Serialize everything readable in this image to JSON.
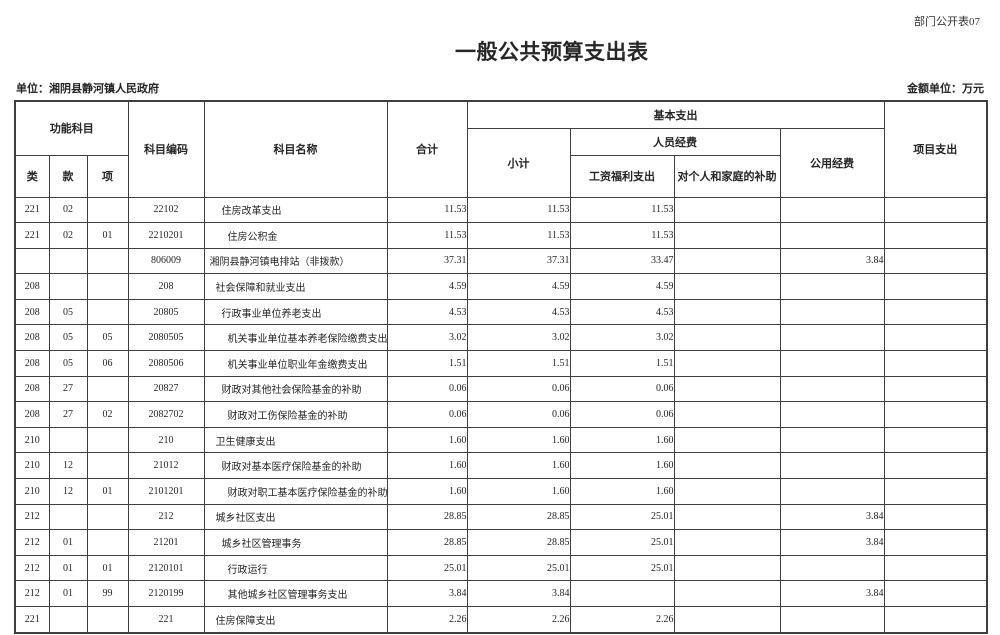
{
  "page": {
    "corner_label": "部门公开表07",
    "title": "一般公共预算支出表",
    "unit_label": "单位：湘阴县静河镇人民政府",
    "amount_unit_label": "金额单位：万元"
  },
  "colors": {
    "background": "#ffffff",
    "border": "#3f3f3f",
    "text": "#262626"
  },
  "table": {
    "header": {
      "functional_subject": "功能科目",
      "cls": "类",
      "section": "款",
      "item": "项",
      "subject_code": "科目编码",
      "subject_name": "科目名称",
      "total": "合计",
      "basic_expenditure": "基本支出",
      "subtotal": "小计",
      "personnel_funds": "人员经费",
      "wage_welfare": "工资福利支出",
      "family_subsidy": "对个人和家庭的补助",
      "public_funds": "公用经费",
      "project_expenditure": "项目支出"
    },
    "rows": [
      {
        "cls": "221",
        "sec": "02",
        "itm": "",
        "code": "22102",
        "name": "住房改革支出",
        "indent": 2,
        "total": "11.53",
        "subtotal": "11.53",
        "wage": "11.53",
        "family": "",
        "pub": "",
        "proj": ""
      },
      {
        "cls": "221",
        "sec": "02",
        "itm": "01",
        "code": "2210201",
        "name": "住房公积金",
        "indent": 3,
        "total": "11.53",
        "subtotal": "11.53",
        "wage": "11.53",
        "family": "",
        "pub": "",
        "proj": ""
      },
      {
        "cls": "",
        "sec": "",
        "itm": "",
        "code": "806009",
        "name": "湘阴县静河镇电排站（非拨款）",
        "indent": 0,
        "total": "37.31",
        "subtotal": "37.31",
        "wage": "33.47",
        "family": "",
        "pub": "3.84",
        "proj": ""
      },
      {
        "cls": "208",
        "sec": "",
        "itm": "",
        "code": "208",
        "name": "社会保障和就业支出",
        "indent": 1,
        "total": "4.59",
        "subtotal": "4.59",
        "wage": "4.59",
        "family": "",
        "pub": "",
        "proj": ""
      },
      {
        "cls": "208",
        "sec": "05",
        "itm": "",
        "code": "20805",
        "name": "行政事业单位养老支出",
        "indent": 2,
        "total": "4.53",
        "subtotal": "4.53",
        "wage": "4.53",
        "family": "",
        "pub": "",
        "proj": ""
      },
      {
        "cls": "208",
        "sec": "05",
        "itm": "05",
        "code": "2080505",
        "name": "机关事业单位基本养老保险缴费支出",
        "indent": 3,
        "total": "3.02",
        "subtotal": "3.02",
        "wage": "3.02",
        "family": "",
        "pub": "",
        "proj": ""
      },
      {
        "cls": "208",
        "sec": "05",
        "itm": "06",
        "code": "2080506",
        "name": "机关事业单位职业年金缴费支出",
        "indent": 3,
        "total": "1.51",
        "subtotal": "1.51",
        "wage": "1.51",
        "family": "",
        "pub": "",
        "proj": ""
      },
      {
        "cls": "208",
        "sec": "27",
        "itm": "",
        "code": "20827",
        "name": "财政对其他社会保险基金的补助",
        "indent": 2,
        "total": "0.06",
        "subtotal": "0.06",
        "wage": "0.06",
        "family": "",
        "pub": "",
        "proj": ""
      },
      {
        "cls": "208",
        "sec": "27",
        "itm": "02",
        "code": "2082702",
        "name": "财政对工伤保险基金的补助",
        "indent": 3,
        "total": "0.06",
        "subtotal": "0.06",
        "wage": "0.06",
        "family": "",
        "pub": "",
        "proj": ""
      },
      {
        "cls": "210",
        "sec": "",
        "itm": "",
        "code": "210",
        "name": "卫生健康支出",
        "indent": 1,
        "total": "1.60",
        "subtotal": "1.60",
        "wage": "1.60",
        "family": "",
        "pub": "",
        "proj": ""
      },
      {
        "cls": "210",
        "sec": "12",
        "itm": "",
        "code": "21012",
        "name": "财政对基本医疗保险基金的补助",
        "indent": 2,
        "total": "1.60",
        "subtotal": "1.60",
        "wage": "1.60",
        "family": "",
        "pub": "",
        "proj": ""
      },
      {
        "cls": "210",
        "sec": "12",
        "itm": "01",
        "code": "2101201",
        "name": "财政对职工基本医疗保险基金的补助",
        "indent": 3,
        "total": "1.60",
        "subtotal": "1.60",
        "wage": "1.60",
        "family": "",
        "pub": "",
        "proj": ""
      },
      {
        "cls": "212",
        "sec": "",
        "itm": "",
        "code": "212",
        "name": "城乡社区支出",
        "indent": 1,
        "total": "28.85",
        "subtotal": "28.85",
        "wage": "25.01",
        "family": "",
        "pub": "3.84",
        "proj": ""
      },
      {
        "cls": "212",
        "sec": "01",
        "itm": "",
        "code": "21201",
        "name": "城乡社区管理事务",
        "indent": 2,
        "total": "28.85",
        "subtotal": "28.85",
        "wage": "25.01",
        "family": "",
        "pub": "3.84",
        "proj": ""
      },
      {
        "cls": "212",
        "sec": "01",
        "itm": "01",
        "code": "2120101",
        "name": "行政运行",
        "indent": 3,
        "total": "25.01",
        "subtotal": "25.01",
        "wage": "25.01",
        "family": "",
        "pub": "",
        "proj": ""
      },
      {
        "cls": "212",
        "sec": "01",
        "itm": "99",
        "code": "2120199",
        "name": "其他城乡社区管理事务支出",
        "indent": 3,
        "total": "3.84",
        "subtotal": "3.84",
        "wage": "",
        "family": "",
        "pub": "3.84",
        "proj": ""
      },
      {
        "cls": "221",
        "sec": "",
        "itm": "",
        "code": "221",
        "name": "住房保障支出",
        "indent": 1,
        "total": "2.26",
        "subtotal": "2.26",
        "wage": "2.26",
        "family": "",
        "pub": "",
        "proj": ""
      }
    ]
  }
}
